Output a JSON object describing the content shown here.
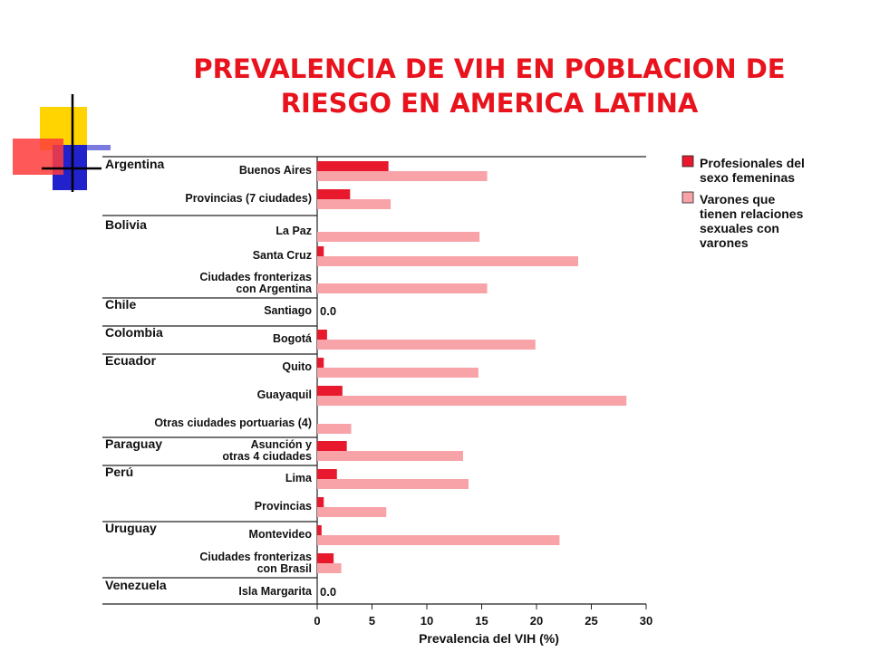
{
  "slide": {
    "title_line1": "PREVALENCIA DE VIH EN POBLACION DE",
    "title_line2": "RIESGO EN AMERICA LATINA",
    "title_color": "#e8131c"
  },
  "chart_data": {
    "type": "bar",
    "orientation": "horizontal",
    "xlabel": "Prevalencia del VIH (%)",
    "xlim": [
      0,
      30
    ],
    "xticks": [
      0,
      5,
      10,
      15,
      20,
      25,
      30
    ],
    "grid": false,
    "legend_position": "top-right",
    "series": [
      {
        "name": "Profesionales del sexo femeninas",
        "legend_lines": [
          "Profesionales del",
          "sexo femeninas"
        ],
        "color": "#e8192c"
      },
      {
        "name": "Varones que tienen relaciones sexuales con varones",
        "legend_lines": [
          "Varones que",
          "tienen relaciones",
          "sexuales con",
          "varones"
        ],
        "color": "#f7a3a8"
      }
    ],
    "groups": [
      {
        "country": "Argentina",
        "rows": [
          {
            "label": [
              "Buenos Aires"
            ],
            "values": [
              6.5,
              15.5
            ]
          },
          {
            "label": [
              "Provincias (7 ciudades)"
            ],
            "values": [
              3.0,
              6.7
            ]
          }
        ]
      },
      {
        "country": "Bolivia",
        "rows": [
          {
            "label": [
              "La Paz"
            ],
            "values": [
              null,
              14.8
            ]
          },
          {
            "label": [
              "Santa Cruz"
            ],
            "values": [
              0.6,
              23.8
            ]
          },
          {
            "label": [
              "Ciudades fronterizas",
              "con Argentina"
            ],
            "values": [
              null,
              15.5
            ]
          }
        ]
      },
      {
        "country": "Chile",
        "rows": [
          {
            "label": [
              "Santiago"
            ],
            "values": [
              null,
              null
            ],
            "value_text": "0.0"
          }
        ]
      },
      {
        "country": "Colombia",
        "rows": [
          {
            "label": [
              "Bogotá"
            ],
            "values": [
              0.9,
              19.9
            ]
          }
        ]
      },
      {
        "country": "Ecuador",
        "rows": [
          {
            "label": [
              "Quito"
            ],
            "values": [
              0.6,
              14.7
            ]
          },
          {
            "label": [
              "Guayaquil"
            ],
            "values": [
              2.3,
              28.2
            ]
          },
          {
            "label": [
              "Otras ciudades portuarias (4)"
            ],
            "values": [
              null,
              3.1
            ]
          }
        ]
      },
      {
        "country": "Paraguay",
        "rows": [
          {
            "label": [
              "Asunción y",
              "otras 4 ciudades"
            ],
            "values": [
              2.7,
              13.3
            ]
          }
        ]
      },
      {
        "country": "Perú",
        "rows": [
          {
            "label": [
              "Lima"
            ],
            "values": [
              1.8,
              13.8
            ]
          },
          {
            "label": [
              "Provincias"
            ],
            "values": [
              0.6,
              6.3
            ]
          }
        ]
      },
      {
        "country": "Uruguay",
        "rows": [
          {
            "label": [
              "Montevideo"
            ],
            "values": [
              0.4,
              22.1
            ]
          },
          {
            "label": [
              "Ciudades fronterizas",
              "con Brasil"
            ],
            "values": [
              1.5,
              2.2
            ]
          }
        ]
      },
      {
        "country": "Venezuela",
        "rows": [
          {
            "label": [
              "Isla Margarita"
            ],
            "values": [
              null,
              null
            ],
            "value_text": "0.0"
          }
        ]
      }
    ]
  }
}
